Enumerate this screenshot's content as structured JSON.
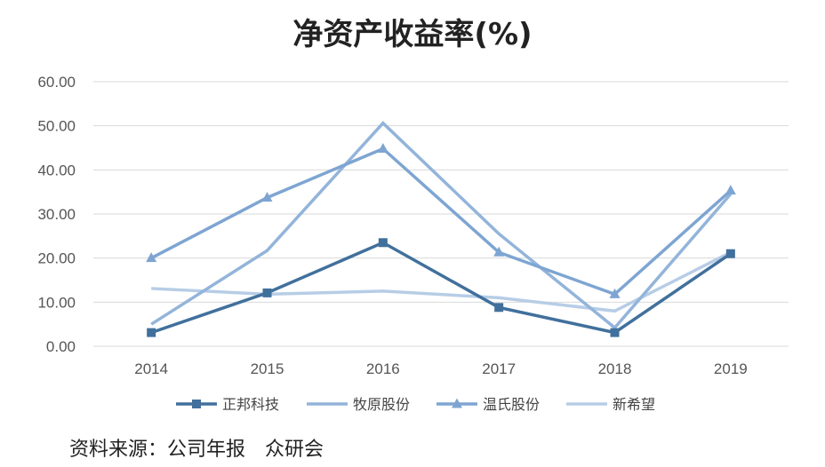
{
  "chart_data": {
    "type": "line",
    "title": "净资产收益率(%)",
    "xlabel": "",
    "ylabel": "",
    "categories": [
      "2014",
      "2015",
      "2016",
      "2017",
      "2018",
      "2019"
    ],
    "ylim": [
      0,
      60
    ],
    "yticks": [
      "0.00",
      "10.00",
      "20.00",
      "30.00",
      "40.00",
      "50.00",
      "60.00"
    ],
    "grid": true,
    "legend_position": "bottom",
    "series": [
      {
        "name": "正邦科技",
        "values": [
          3.1,
          12.1,
          23.5,
          8.8,
          3.1,
          21.0
        ],
        "color": "#41709c",
        "marker": "square"
      },
      {
        "name": "牧原股份",
        "values": [
          5.0,
          21.7,
          50.6,
          25.5,
          4.2,
          34.5
        ],
        "color": "#93b4da",
        "marker": "none"
      },
      {
        "name": "温氏股份",
        "values": [
          20.0,
          33.7,
          44.8,
          21.3,
          11.8,
          35.3
        ],
        "color": "#7ea5d2",
        "marker": "triangle"
      },
      {
        "name": "新希望",
        "values": [
          13.1,
          11.8,
          12.5,
          11.0,
          8.0,
          21.3
        ],
        "color": "#b7cde6",
        "marker": "none"
      }
    ]
  },
  "source_text": "资料来源：公司年报　众研会"
}
